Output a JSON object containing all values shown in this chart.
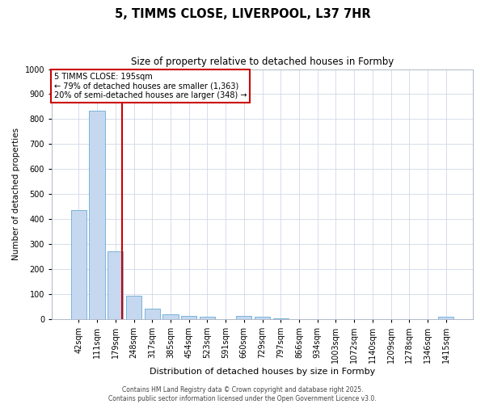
{
  "title": "5, TIMMS CLOSE, LIVERPOOL, L37 7HR",
  "subtitle": "Size of property relative to detached houses in Formby",
  "xlabel": "Distribution of detached houses by size in Formby",
  "ylabel": "Number of detached properties",
  "categories": [
    "42sqm",
    "111sqm",
    "179sqm",
    "248sqm",
    "317sqm",
    "385sqm",
    "454sqm",
    "523sqm",
    "591sqm",
    "660sqm",
    "729sqm",
    "797sqm",
    "866sqm",
    "934sqm",
    "1003sqm",
    "1072sqm",
    "1140sqm",
    "1209sqm",
    "1278sqm",
    "1346sqm",
    "1415sqm"
  ],
  "values": [
    435,
    835,
    270,
    95,
    43,
    20,
    14,
    9,
    0,
    12,
    9,
    2,
    1,
    1,
    1,
    1,
    1,
    1,
    1,
    1,
    8
  ],
  "bar_color": "#c5d8f0",
  "bar_edge_color": "#6aaad4",
  "red_line_index": 2,
  "ylim": [
    0,
    1000
  ],
  "yticks": [
    0,
    100,
    200,
    300,
    400,
    500,
    600,
    700,
    800,
    900,
    1000
  ],
  "annotation_title": "5 TIMMS CLOSE: 195sqm",
  "annotation_line1": "← 79% of detached houses are smaller (1,363)",
  "annotation_line2": "20% of semi-detached houses are larger (348) →",
  "annotation_box_color": "#ffffff",
  "annotation_box_edge": "#cc0000",
  "footer_line1": "Contains HM Land Registry data © Crown copyright and database right 2025.",
  "footer_line2": "Contains public sector information licensed under the Open Government Licence v3.0.",
  "background_color": "#ffffff",
  "grid_color": "#d0d8e8"
}
